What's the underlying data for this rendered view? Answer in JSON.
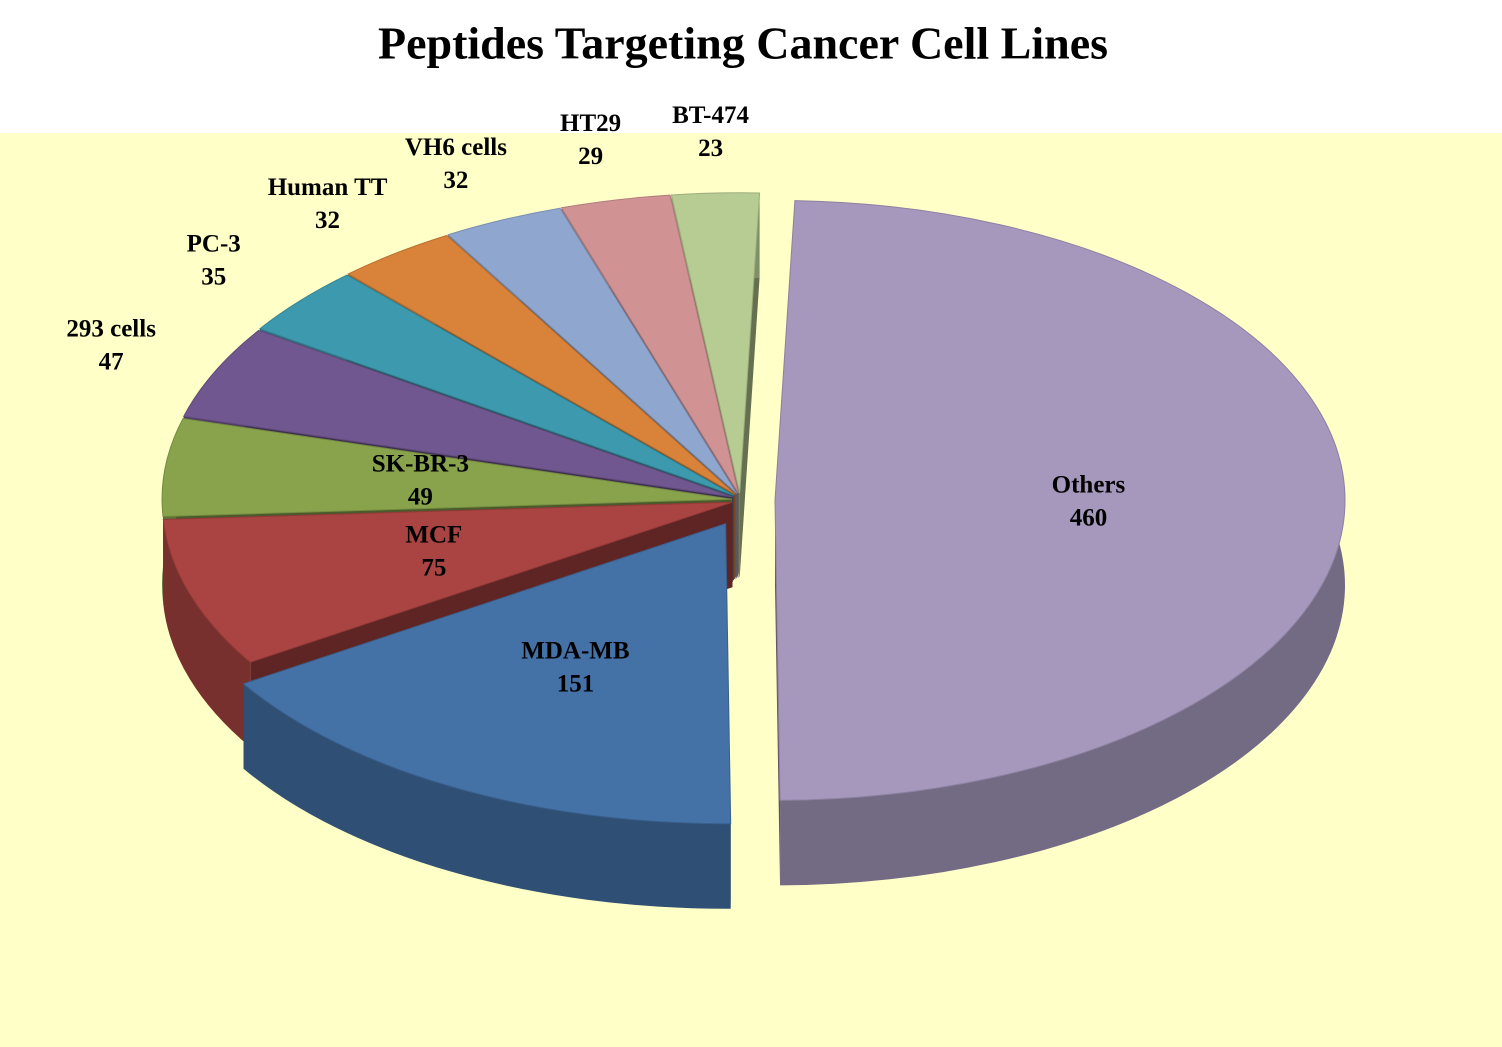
{
  "chart_data": {
    "type": "pie",
    "title": "Peptides Targeting Cancer Cell Lines",
    "categories": [
      "Others",
      "MDA-MB",
      "MCF",
      "SK-BR-3",
      "293 cells",
      "PC-3",
      "Human TT",
      "VH6 cells",
      "HT29",
      "BT-474"
    ],
    "values": [
      460,
      151,
      75,
      49,
      47,
      35,
      32,
      32,
      29,
      23
    ],
    "colors": [
      "#a598bc",
      "#4471a6",
      "#aa4442",
      "#88a34c",
      "#71578f",
      "#3d9aae",
      "#d9833a",
      "#8fa6cf",
      "#d09292",
      "#b7cc93"
    ]
  }
}
